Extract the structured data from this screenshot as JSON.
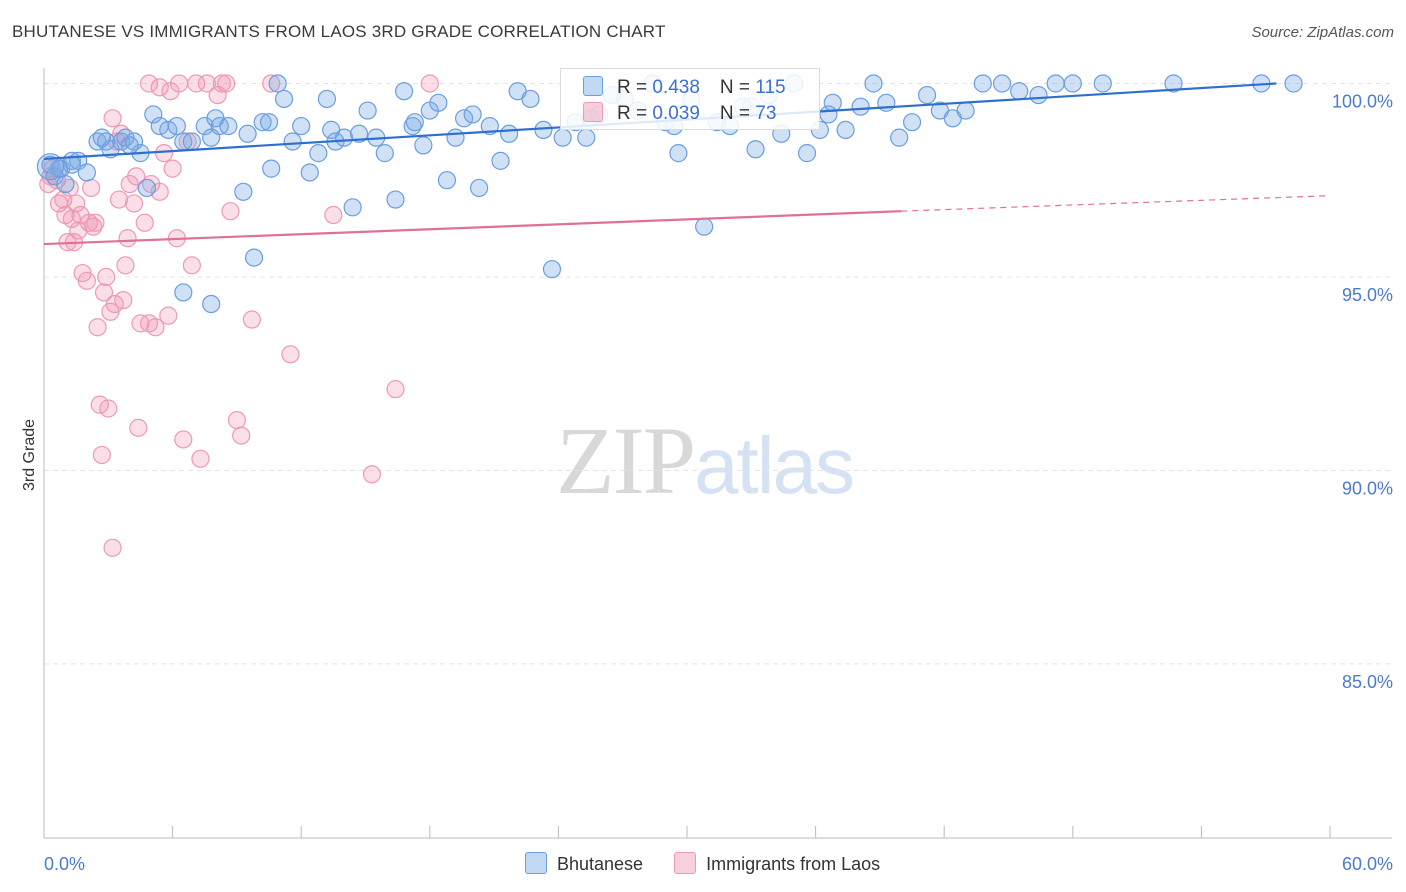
{
  "header": {
    "title": "BHUTANESE VS IMMIGRANTS FROM LAOS 3RD GRADE CORRELATION CHART",
    "source": "Source: ZipAtlas.com"
  },
  "watermark": {
    "zip": "ZIP",
    "atlas": "atlas"
  },
  "legend": {
    "series1": {
      "r_label": "R = ",
      "r_value": "0.438",
      "n_label": "N = ",
      "n_value": "115"
    },
    "series2": {
      "r_label": "R = ",
      "r_value": "0.039",
      "n_label": "N = ",
      "n_value": "73"
    }
  },
  "bottom_legend": {
    "series1": "Bhutanese",
    "series2": "Immigrants from Laos"
  },
  "colors": {
    "blue_fill": "rgba(120,170,230,0.35)",
    "blue_stroke": "#6a9ee0",
    "blue_line": "#2f6fce",
    "pink_fill": "rgba(240,150,180,0.30)",
    "pink_stroke": "#ee99b6",
    "pink_line": "#e0709a",
    "grid": "#e4e4e4",
    "tick_text": "#4a7bd0"
  },
  "chart_data": {
    "type": "scatter",
    "title": "BHUTANESE VS IMMIGRANTS FROM LAOS 3RD GRADE CORRELATION CHART",
    "ylabel": "3rd Grade",
    "xlabel": "",
    "xlim": [
      0,
      60
    ],
    "ylim": [
      80.5,
      100.4
    ],
    "x_tick_labels": [
      {
        "x": 0,
        "label": "0.0%"
      },
      {
        "x": 60,
        "label": "60.0%"
      }
    ],
    "y_tick_labels": [
      {
        "y": 100,
        "label": "100.0%"
      },
      {
        "y": 95,
        "label": "95.0%"
      },
      {
        "y": 90,
        "label": "90.0%"
      },
      {
        "y": 85,
        "label": "85.0%"
      }
    ],
    "grid": true,
    "series": [
      {
        "name": "Bhutanese",
        "R": 0.438,
        "N": 115,
        "trend": {
          "x": [
            0,
            57.5
          ],
          "y": [
            98.05,
            100.0
          ]
        },
        "points": [
          [
            0.3,
            97.9
          ],
          [
            0.5,
            97.6
          ],
          [
            0.8,
            97.8
          ],
          [
            1.0,
            97.4
          ],
          [
            1.3,
            98.0
          ],
          [
            1.6,
            98.0
          ],
          [
            2.0,
            97.7
          ],
          [
            2.5,
            98.5
          ],
          [
            2.9,
            98.5
          ],
          [
            3.1,
            98.3
          ],
          [
            3.6,
            98.5
          ],
          [
            3.8,
            98.6
          ],
          [
            4.2,
            98.5
          ],
          [
            4.5,
            98.2
          ],
          [
            4.8,
            97.3
          ],
          [
            5.1,
            99.2
          ],
          [
            5.4,
            98.9
          ],
          [
            5.8,
            98.8
          ],
          [
            6.2,
            98.9
          ],
          [
            6.5,
            98.5
          ],
          [
            6.9,
            98.5
          ],
          [
            7.5,
            98.9
          ],
          [
            7.8,
            98.6
          ],
          [
            8.0,
            99.1
          ],
          [
            8.2,
            98.9
          ],
          [
            8.6,
            98.9
          ],
          [
            9.3,
            97.2
          ],
          [
            9.5,
            98.7
          ],
          [
            9.8,
            95.5
          ],
          [
            10.2,
            99.0
          ],
          [
            10.5,
            99.0
          ],
          [
            10.9,
            100.0
          ],
          [
            11.2,
            99.6
          ],
          [
            11.6,
            98.5
          ],
          [
            12.0,
            98.9
          ],
          [
            12.4,
            97.7
          ],
          [
            12.8,
            98.2
          ],
          [
            13.2,
            99.6
          ],
          [
            13.6,
            98.5
          ],
          [
            14.0,
            98.6
          ],
          [
            14.4,
            96.8
          ],
          [
            14.7,
            98.7
          ],
          [
            15.1,
            99.3
          ],
          [
            15.5,
            98.6
          ],
          [
            15.9,
            98.2
          ],
          [
            16.4,
            97.0
          ],
          [
            16.8,
            99.8
          ],
          [
            17.2,
            98.9
          ],
          [
            17.7,
            98.4
          ],
          [
            18.0,
            99.3
          ],
          [
            18.4,
            99.5
          ],
          [
            18.8,
            97.5
          ],
          [
            19.2,
            98.6
          ],
          [
            19.6,
            99.1
          ],
          [
            20.0,
            99.2
          ],
          [
            20.3,
            97.3
          ],
          [
            20.8,
            98.9
          ],
          [
            21.3,
            98.0
          ],
          [
            22.1,
            99.8
          ],
          [
            22.7,
            99.6
          ],
          [
            23.3,
            98.8
          ],
          [
            23.7,
            95.2
          ],
          [
            24.2,
            98.6
          ],
          [
            24.8,
            99.0
          ],
          [
            25.3,
            98.6
          ],
          [
            25.9,
            99.2
          ],
          [
            26.5,
            99.7
          ],
          [
            27.1,
            99.6
          ],
          [
            27.7,
            99.3
          ],
          [
            28.4,
            100.0
          ],
          [
            29.0,
            99.0
          ],
          [
            29.6,
            98.2
          ],
          [
            30.2,
            99.6
          ],
          [
            30.8,
            96.3
          ],
          [
            31.4,
            99.0
          ],
          [
            32.0,
            98.9
          ],
          [
            32.6,
            99.4
          ],
          [
            33.2,
            98.3
          ],
          [
            33.8,
            99.7
          ],
          [
            34.4,
            98.7
          ],
          [
            35.0,
            100.0
          ],
          [
            35.6,
            98.2
          ],
          [
            36.2,
            98.8
          ],
          [
            36.8,
            99.5
          ],
          [
            37.4,
            98.8
          ],
          [
            38.1,
            99.4
          ],
          [
            38.7,
            100.0
          ],
          [
            39.3,
            99.5
          ],
          [
            39.9,
            98.6
          ],
          [
            40.5,
            99.0
          ],
          [
            41.2,
            99.7
          ],
          [
            41.8,
            99.3
          ],
          [
            42.4,
            99.1
          ],
          [
            43.0,
            99.3
          ],
          [
            43.8,
            100.0
          ],
          [
            44.7,
            100.0
          ],
          [
            45.5,
            99.8
          ],
          [
            46.4,
            99.7
          ],
          [
            47.2,
            100.0
          ],
          [
            48.0,
            100.0
          ],
          [
            49.4,
            100.0
          ],
          [
            52.7,
            100.0
          ],
          [
            56.8,
            100.0
          ],
          [
            58.3,
            100.0
          ],
          [
            7.8,
            94.3
          ],
          [
            6.5,
            94.6
          ],
          [
            2.7,
            98.6
          ],
          [
            1.3,
            97.9
          ],
          [
            0.7,
            97.8
          ],
          [
            4.0,
            98.4
          ],
          [
            10.6,
            97.8
          ],
          [
            13.4,
            98.8
          ],
          [
            17.3,
            99.0
          ],
          [
            21.7,
            98.7
          ],
          [
            25.5,
            99.1
          ],
          [
            29.4,
            98.9
          ],
          [
            33.0,
            99.4
          ],
          [
            36.6,
            99.2
          ]
        ]
      },
      {
        "name": "Immigrants from Laos",
        "R": 0.039,
        "N": 73,
        "trend": {
          "x": [
            0,
            40
          ],
          "y": [
            95.85,
            96.7
          ]
        },
        "trend_dashed": {
          "x": [
            40,
            60
          ],
          "y": [
            96.7,
            97.1
          ]
        },
        "points": [
          [
            0.2,
            97.4
          ],
          [
            0.3,
            97.6
          ],
          [
            0.4,
            97.8
          ],
          [
            0.6,
            97.5
          ],
          [
            0.7,
            96.9
          ],
          [
            0.9,
            97.0
          ],
          [
            1.0,
            96.6
          ],
          [
            1.1,
            95.9
          ],
          [
            1.2,
            97.3
          ],
          [
            1.3,
            96.5
          ],
          [
            1.4,
            95.9
          ],
          [
            1.5,
            96.9
          ],
          [
            1.6,
            96.2
          ],
          [
            1.7,
            96.6
          ],
          [
            1.8,
            95.1
          ],
          [
            2.0,
            94.9
          ],
          [
            2.1,
            96.4
          ],
          [
            2.2,
            97.3
          ],
          [
            2.3,
            96.3
          ],
          [
            2.4,
            96.4
          ],
          [
            2.5,
            93.7
          ],
          [
            2.6,
            91.7
          ],
          [
            2.7,
            90.4
          ],
          [
            2.8,
            94.6
          ],
          [
            2.9,
            95.0
          ],
          [
            3.0,
            91.6
          ],
          [
            3.1,
            94.1
          ],
          [
            3.2,
            99.1
          ],
          [
            3.3,
            94.3
          ],
          [
            3.4,
            98.5
          ],
          [
            3.5,
            97.0
          ],
          [
            3.6,
            98.7
          ],
          [
            3.7,
            94.4
          ],
          [
            3.8,
            95.3
          ],
          [
            3.9,
            96.0
          ],
          [
            4.0,
            97.4
          ],
          [
            4.2,
            96.9
          ],
          [
            4.3,
            97.6
          ],
          [
            4.4,
            91.1
          ],
          [
            4.5,
            93.8
          ],
          [
            4.7,
            96.4
          ],
          [
            4.9,
            93.8
          ],
          [
            5.0,
            97.4
          ],
          [
            5.2,
            93.7
          ],
          [
            5.4,
            97.2
          ],
          [
            5.6,
            98.2
          ],
          [
            5.8,
            94.0
          ],
          [
            6.0,
            97.8
          ],
          [
            6.2,
            96.0
          ],
          [
            6.3,
            100.0
          ],
          [
            6.5,
            90.8
          ],
          [
            6.7,
            98.5
          ],
          [
            6.9,
            95.3
          ],
          [
            7.1,
            100.0
          ],
          [
            7.3,
            90.3
          ],
          [
            7.6,
            100.0
          ],
          [
            8.1,
            99.7
          ],
          [
            8.5,
            100.0
          ],
          [
            8.7,
            96.7
          ],
          [
            9.0,
            91.3
          ],
          [
            9.2,
            90.9
          ],
          [
            9.7,
            93.9
          ],
          [
            10.6,
            100.0
          ],
          [
            11.5,
            93.0
          ],
          [
            13.5,
            96.6
          ],
          [
            15.3,
            89.9
          ],
          [
            16.4,
            92.1
          ],
          [
            18.0,
            100.0
          ],
          [
            3.2,
            88.0
          ],
          [
            4.9,
            100.0
          ],
          [
            5.4,
            99.9
          ],
          [
            8.3,
            100.0
          ],
          [
            5.9,
            99.8
          ]
        ]
      }
    ]
  }
}
